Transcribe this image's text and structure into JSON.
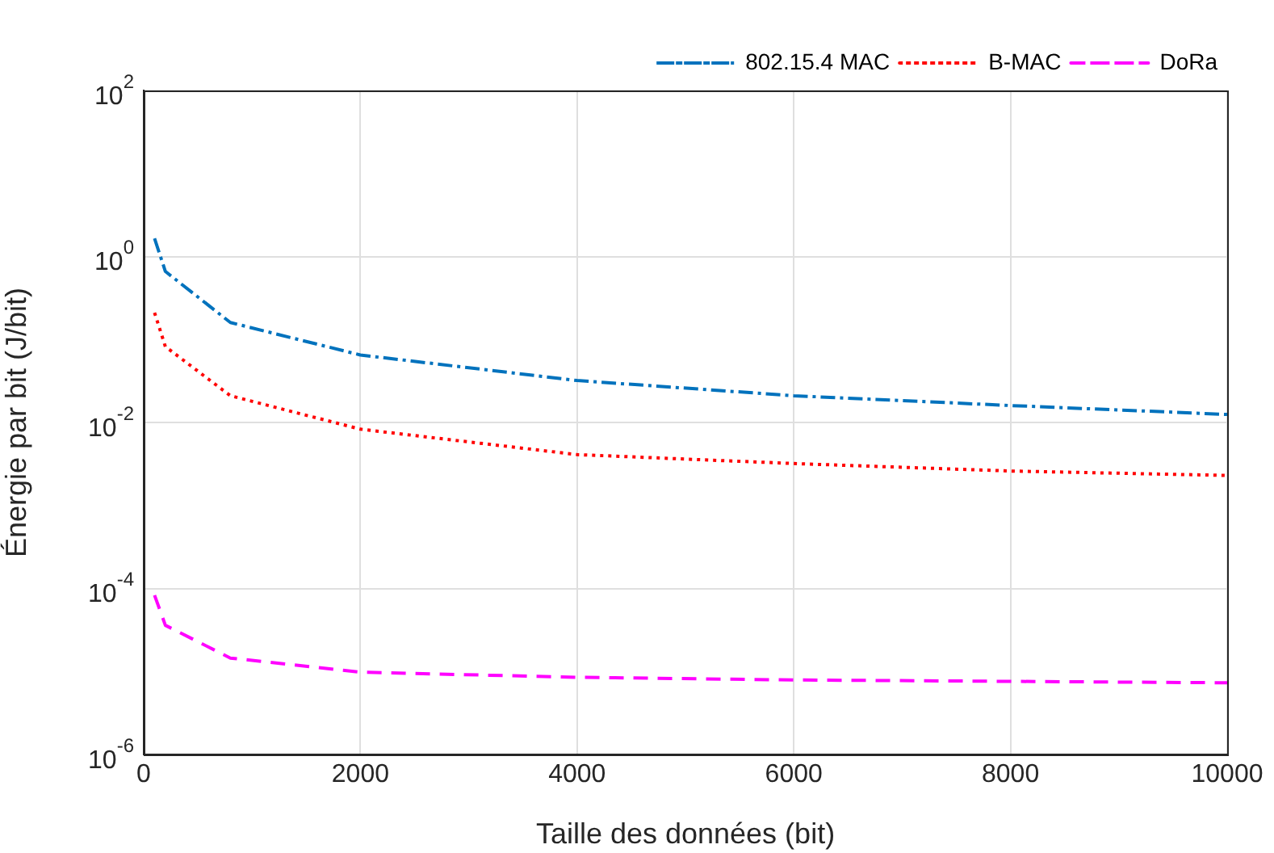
{
  "chart_data": {
    "type": "line",
    "xlabel": "Taille des données (bit)",
    "ylabel": "Énergie par bit (J/bit)",
    "x": [
      100,
      200,
      800,
      2000,
      4000,
      6000,
      8000,
      10000
    ],
    "series": [
      {
        "name": "802.15.4 MAC",
        "color": "#0072bd",
        "line_style": "dashdot",
        "values": [
          1.65,
          0.66,
          0.16,
          0.065,
          0.032,
          0.021,
          0.016,
          0.0125
        ]
      },
      {
        "name": "B-MAC",
        "color": "#ff0000",
        "line_style": "dotted",
        "values": [
          0.21,
          0.082,
          0.021,
          0.0083,
          0.0041,
          0.0032,
          0.0026,
          0.0023
        ]
      },
      {
        "name": "DoRa",
        "color": "#ff00ff",
        "line_style": "dashed",
        "values": [
          8.3e-05,
          3.6e-05,
          1.45e-05,
          9.8e-06,
          8.5e-06,
          7.9e-06,
          7.6e-06,
          7.3e-06
        ]
      }
    ],
    "xlim": [
      0,
      10000
    ],
    "xticks": [
      0,
      2000,
      4000,
      6000,
      8000,
      10000
    ],
    "ylim": [
      1e-06,
      100
    ],
    "yticks": [
      {
        "value": 1e-06,
        "label": "10$^{-6}$"
      },
      {
        "value": 0.0001,
        "label": "10$^{-4}$"
      },
      {
        "value": 0.01,
        "label": "10$^{-2}$"
      },
      {
        "value": 1,
        "label": "10$^{0}$"
      },
      {
        "value": 100,
        "label": "10$^{2}$"
      }
    ],
    "log": "y",
    "grid": true,
    "legend": "top right"
  }
}
